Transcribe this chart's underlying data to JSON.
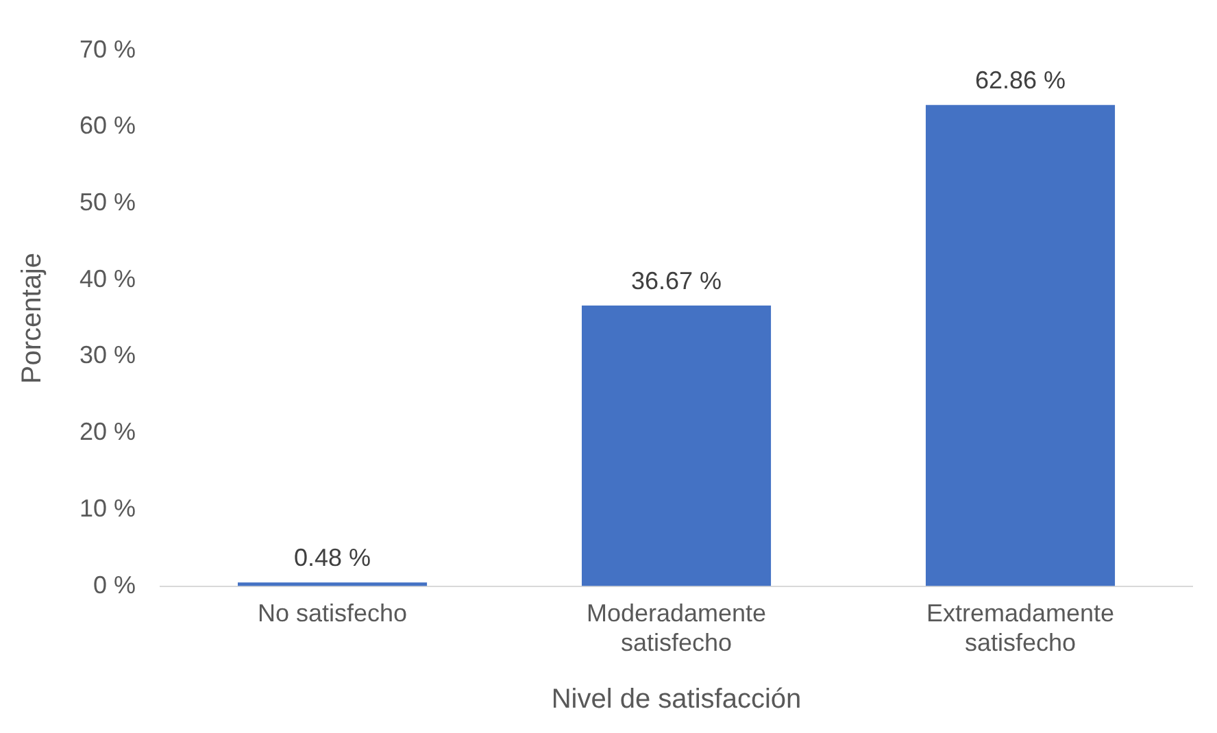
{
  "chart_data": {
    "type": "bar",
    "xlabel": "Nivel de satisfacción",
    "ylabel": "Porcentaje",
    "categories": [
      "No satisfecho",
      "Moderadamente satisfecho",
      "Extremadamente satisfecho"
    ],
    "values": [
      0.48,
      36.67,
      62.86
    ],
    "value_labels": [
      "0.48 %",
      "36.67 %",
      "62.86 %"
    ],
    "color": "#4472c4",
    "ylim": [
      0,
      70
    ],
    "yticks": [
      {
        "value": 0,
        "label": "0 %"
      },
      {
        "value": 10,
        "label": "10 %"
      },
      {
        "value": 20,
        "label": "20 %"
      },
      {
        "value": 30,
        "label": "30 %"
      },
      {
        "value": 40,
        "label": "40 %"
      },
      {
        "value": 50,
        "label": "50 %"
      },
      {
        "value": 60,
        "label": "60 %"
      },
      {
        "value": 70,
        "label": "70 %"
      }
    ],
    "grid": false,
    "legend": false
  }
}
